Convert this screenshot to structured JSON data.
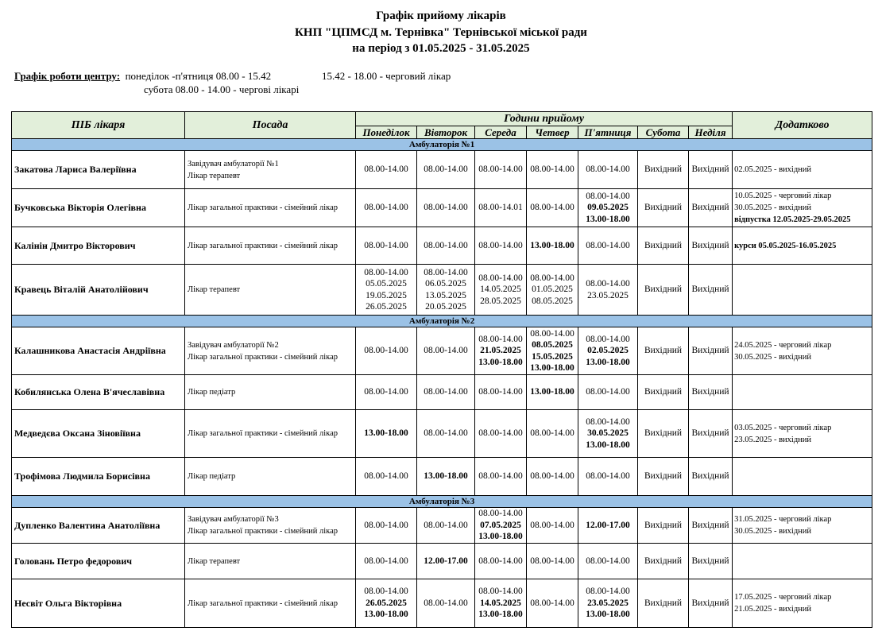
{
  "header": {
    "title_line1": "Графік прийому лікарів",
    "title_line2": "КНП \"ЦПМСД м. Тернівка\" Тернівської міської ради",
    "title_line3": "на період з 01.05.2025 - 31.05.2025"
  },
  "work_schedule": {
    "label": "Графік роботи центру:",
    "weekdays": "понеділок -п'ятниця 08.00 - 15.42",
    "duty": "15.42 - 18.00 - черговий лікар",
    "saturday": "субота 08.00 - 14.00 - чергові лікарі"
  },
  "table": {
    "col_name": "ПІБ лікаря",
    "col_position": "Посада",
    "col_hours": "Години прийому",
    "col_extra": "Додатково",
    "days": [
      "Понеділок",
      "Вівторок",
      "Середа",
      "Четвер",
      "П'ятниця",
      "Субота",
      "Неділя"
    ],
    "colors": {
      "header_bg": "#e2efda",
      "group_bg": "#9bc2e6"
    },
    "groups": [
      {
        "title": "Амбулаторія №1",
        "doctors": [
          {
            "name": "Закатова Лариса Валеріївна",
            "position": [
              "Завідувач амбулаторії №1",
              "Лікар терапевт"
            ],
            "days": [
              [
                "08.00-14.00"
              ],
              [
                "08.00-14.00"
              ],
              [
                "08.00-14.00"
              ],
              [
                "08.00-14.00"
              ],
              [
                "08.00-14.00"
              ],
              [
                "Вихідний"
              ],
              [
                "Вихідний"
              ]
            ],
            "extra": [
              "02.05.2025 - вихідний"
            ]
          },
          {
            "name": "Бучковська Вікторія Олегівна",
            "position": [
              "Лікар загальної практики - сімейний лікар"
            ],
            "days": [
              [
                "08.00-14.00"
              ],
              [
                "08.00-14.00"
              ],
              [
                "08.00-14.01"
              ],
              [
                "08.00-14.00"
              ],
              [
                "08.00-14.00",
                {
                  "t": "09.05.2025",
                  "b": true
                },
                {
                  "t": "13.00-18.00",
                  "b": true
                }
              ],
              [
                "Вихідний"
              ],
              [
                "Вихідний"
              ]
            ],
            "extra": [
              "10.05.2025 - черговий лікар",
              "30.05.2025 - вихідний",
              {
                "t": "відпустка 12.05.2025-29.05.2025",
                "b": true
              }
            ]
          },
          {
            "name": "Калінін Дмитро Вікторович",
            "position": [
              "Лікар загальної практики - сімейний лікар"
            ],
            "days": [
              [
                "08.00-14.00"
              ],
              [
                "08.00-14.00"
              ],
              [
                "08.00-14.00"
              ],
              [
                {
                  "t": "13.00-18.00",
                  "b": true
                }
              ],
              [
                "08.00-14.00"
              ],
              [
                "Вихідний"
              ],
              [
                "Вихідний"
              ]
            ],
            "extra": [
              {
                "t": "курси 05.05.2025-16.05.2025",
                "b": true
              }
            ]
          },
          {
            "name": "Кравець Віталій Анатолійович",
            "position": [
              "Лікар терапевт"
            ],
            "days": [
              [
                "08.00-14.00",
                "05.05.2025",
                "19.05.2025",
                "26.05.2025"
              ],
              [
                "08.00-14.00",
                "06.05.2025",
                "13.05.2025",
                "20.05.2025"
              ],
              [
                "08.00-14.00",
                "14.05.2025",
                "28.05.2025"
              ],
              [
                "08.00-14.00",
                "01.05.2025",
                "08.05.2025"
              ],
              [
                "08.00-14.00",
                "23.05.2025"
              ],
              [
                "Вихідний"
              ],
              [
                "Вихідний"
              ]
            ],
            "extra": []
          }
        ]
      },
      {
        "title": "Амбулаторія №2",
        "doctors": [
          {
            "name": "Калашникова Анастасія Андріївна",
            "position": [
              "Завідувач амбулаторії №2",
              "Лікар загальної практики - сімейний лікар"
            ],
            "days": [
              [
                "08.00-14.00"
              ],
              [
                "08.00-14.00"
              ],
              [
                "08.00-14.00",
                {
                  "t": "21.05.2025",
                  "b": true
                },
                {
                  "t": "13.00-18.00",
                  "b": true
                }
              ],
              [
                "08.00-14.00",
                {
                  "t": "08.05.2025",
                  "b": true
                },
                {
                  "t": "15.05.2025",
                  "b": true
                },
                {
                  "t": "13.00-18.00",
                  "b": true
                }
              ],
              [
                "08.00-14.00",
                {
                  "t": "02.05.2025",
                  "b": true
                },
                {
                  "t": "13.00-18.00",
                  "b": true
                }
              ],
              [
                "Вихідний"
              ],
              [
                "Вихідний"
              ]
            ],
            "extra": [
              "24.05.2025 - черговий лікар",
              "30.05.2025 - вихідний"
            ]
          },
          {
            "name": "Кобилянська Олена В'ячеславівна",
            "position": [
              "Лікар педіатр"
            ],
            "days": [
              [
                "08.00-14.00"
              ],
              [
                "08.00-14.00"
              ],
              [
                "08.00-14.00"
              ],
              [
                {
                  "t": "13.00-18.00",
                  "b": true
                }
              ],
              [
                "08.00-14.00"
              ],
              [
                "Вихідний"
              ],
              [
                "Вихідний"
              ]
            ],
            "extra": []
          },
          {
            "name": "Медведєва Оксана Зіновіївна",
            "position": [
              "Лікар загальної практики - сімейний лікар"
            ],
            "days": [
              [
                {
                  "t": "13.00-18.00",
                  "b": true
                }
              ],
              [
                "08.00-14.00"
              ],
              [
                "08.00-14.00"
              ],
              [
                "08.00-14.00"
              ],
              [
                "08.00-14.00",
                {
                  "t": "30.05.2025",
                  "b": true
                },
                {
                  "t": "13.00-18.00",
                  "b": true
                }
              ],
              [
                "Вихідний"
              ],
              [
                "Вихідний"
              ]
            ],
            "extra": [
              "03.05.2025 - черговий лікар",
              "23.05.2025 - вихідний"
            ]
          },
          {
            "name": "Трофімова Людмила Борисівна",
            "position": [
              "Лікар педіатр"
            ],
            "days": [
              [
                "08.00-14.00"
              ],
              [
                {
                  "t": "13.00-18.00",
                  "b": true
                }
              ],
              [
                "08.00-14.00"
              ],
              [
                "08.00-14.00"
              ],
              [
                "08.00-14.00"
              ],
              [
                "Вихідний"
              ],
              [
                "Вихідний"
              ]
            ],
            "extra": []
          }
        ]
      },
      {
        "title": "Амбулаторія №3",
        "doctors": [
          {
            "name": "Дупленко Валентина Анатоліївна",
            "position": [
              "Завідувач амбулаторії №3",
              "Лікар загальної практики - сімейний лікар"
            ],
            "days": [
              [
                "08.00-14.00"
              ],
              [
                "08.00-14.00"
              ],
              [
                "08.00-14.00",
                {
                  "t": "07.05.2025",
                  "b": true
                },
                {
                  "t": "13.00-18.00",
                  "b": true
                }
              ],
              [
                "08.00-14.00"
              ],
              [
                {
                  "t": "12.00-17.00",
                  "b": true
                }
              ],
              [
                "Вихідний"
              ],
              [
                "Вихідний"
              ]
            ],
            "extra": [
              "31.05.2025 - черговий лікар",
              "30.05.2025 - вихідний"
            ]
          },
          {
            "name": "Головань Петро федорович",
            "position": [
              "Лікар терапевт"
            ],
            "days": [
              [
                "08.00-14.00"
              ],
              [
                {
                  "t": "12.00-17.00",
                  "b": true
                }
              ],
              [
                "08.00-14.00"
              ],
              [
                "08.00-14.00"
              ],
              [
                "08.00-14.00"
              ],
              [
                "Вихідний"
              ],
              [
                "Вихідний"
              ]
            ],
            "extra": []
          },
          {
            "name": "Несвіт Ольга Вікторівна",
            "position": [
              "Лікар загальної практики - сімейний лікар"
            ],
            "days": [
              [
                "08.00-14.00",
                {
                  "t": "26.05.2025",
                  "b": true
                },
                {
                  "t": "13.00-18.00",
                  "b": true
                }
              ],
              [
                "08.00-14.00"
              ],
              [
                "08.00-14.00",
                {
                  "t": "14.05.2025",
                  "b": true
                },
                {
                  "t": "13.00-18.00",
                  "b": true
                }
              ],
              [
                "08.00-14.00"
              ],
              [
                "08.00-14.00",
                {
                  "t": "23.05.2025",
                  "b": true
                },
                {
                  "t": "13.00-18.00",
                  "b": true
                }
              ],
              [
                "Вихідний"
              ],
              [
                "Вихідний"
              ]
            ],
            "extra": [
              "17.05.2025 - черговий лікар",
              "21.05.2025 - вихідний"
            ]
          }
        ]
      }
    ]
  }
}
